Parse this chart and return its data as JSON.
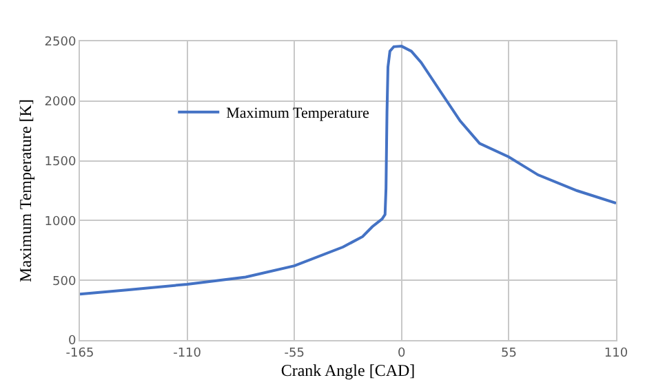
{
  "chart_data": {
    "type": "line",
    "xlabel": "Crank Angle [CAD]",
    "ylabel": "Maximum Temperature [K]",
    "xlim": [
      -165,
      110
    ],
    "xticks": [
      -165,
      -110,
      -55,
      0,
      55,
      110
    ],
    "ylim": [
      0,
      2500
    ],
    "yticks": [
      0,
      500,
      1000,
      1500,
      2000,
      2500
    ],
    "grid": true,
    "legend": "top left",
    "marker": "none",
    "line_style": "solid",
    "series": [
      {
        "name": "Maximum Temperature",
        "color": "#4472c4",
        "x": [
          -165,
          -140,
          -110,
          -80,
          -55,
          -30,
          -20,
          -15,
          -10,
          -8.5,
          -8,
          -7.5,
          -7,
          -6,
          -4,
          0,
          5,
          10,
          20,
          30,
          40,
          55,
          70,
          90,
          110
        ],
        "values": [
          384,
          420,
          467,
          527,
          621,
          779,
          866,
          949,
          1013,
          1050,
          1269,
          1909,
          2285,
          2417,
          2455,
          2459,
          2417,
          2323,
          2078,
          1834,
          1645,
          1532,
          1382,
          1250,
          1145
        ]
      }
    ]
  }
}
